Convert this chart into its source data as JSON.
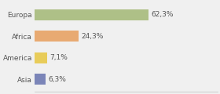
{
  "categories": [
    "Europa",
    "Africa",
    "America",
    "Asia"
  ],
  "values": [
    62.3,
    24.3,
    7.1,
    6.3
  ],
  "labels": [
    "62,3%",
    "24,3%",
    "7,1%",
    "6,3%"
  ],
  "bar_colors": [
    "#aec087",
    "#e8aa72",
    "#e8cc5a",
    "#7b85b8"
  ],
  "background_color": "#f0f0f0",
  "xlim": [
    0,
    100
  ],
  "bar_height": 0.5,
  "label_fontsize": 6.5,
  "category_fontsize": 6.5
}
